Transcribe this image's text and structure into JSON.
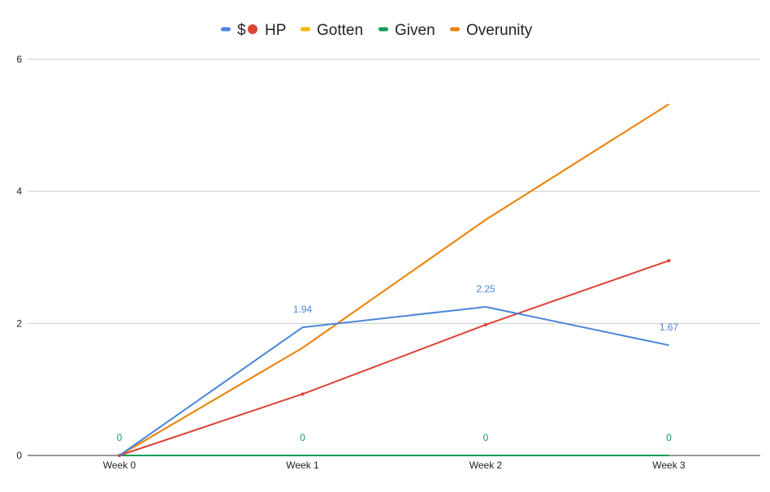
{
  "chart_data": {
    "type": "line",
    "title": "",
    "xlabel": "",
    "ylabel": "",
    "categories": [
      "Week 0",
      "Week 1",
      "Week 2",
      "Week 3"
    ],
    "ylim": [
      0,
      6
    ],
    "yticks": [
      "0",
      "2",
      "4",
      "6"
    ],
    "grid": true,
    "legend": "top-center",
    "series": [
      {
        "name": "$",
        "color": "#4a86d8",
        "marker": "line",
        "values": [
          0,
          1.94,
          2.25,
          1.67
        ],
        "labels": [
          "",
          "1.94",
          "2.25",
          "1.67"
        ]
      },
      {
        "name": "HP",
        "color": "#db4437",
        "marker": "dot",
        "values": [
          0,
          0.93,
          1.98,
          2.95
        ],
        "labels": [
          "",
          "",
          "",
          ""
        ]
      },
      {
        "name": "Gotten",
        "color": "#f4b400",
        "marker": "line",
        "values": [
          0,
          1.63,
          3.57,
          5.32
        ],
        "labels": [
          "",
          "",
          "",
          ""
        ]
      },
      {
        "name": "Given",
        "color": "#0f9d58",
        "marker": "line",
        "values": [
          0,
          0,
          0,
          0
        ],
        "labels": [
          "0",
          "0",
          "0",
          "0"
        ]
      },
      {
        "name": "Overunity",
        "color": "#ea8211",
        "marker": "line",
        "values": [
          0,
          1.63,
          3.57,
          5.32
        ],
        "labels": [
          "",
          "",
          "",
          ""
        ]
      }
    ]
  }
}
